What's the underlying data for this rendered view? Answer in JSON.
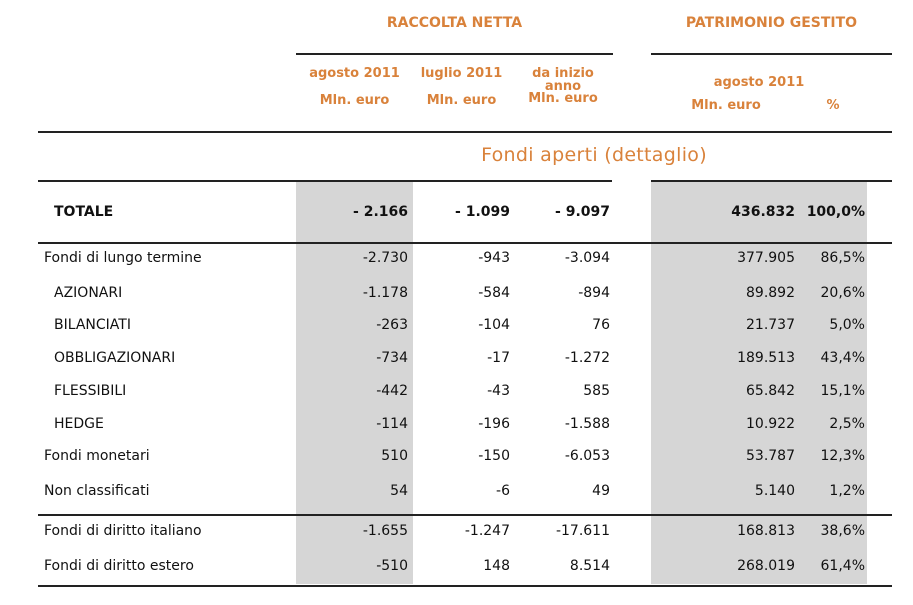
{
  "header": {
    "group_raccolta": "RACCOLTA NETTA",
    "group_patrimonio": "PATRIMONIO GESTITO",
    "columns": {
      "col1_period": "agosto 2011",
      "col1_unit": "Mln. euro",
      "col2_period": "luglio 2011",
      "col2_unit": "Mln. euro",
      "col3_period_line1": "da inizio",
      "col3_period_line2": "anno",
      "col3_unit": "Mln. euro",
      "col4_period": "agosto 2011",
      "col4_unit": "Mln. euro",
      "col5_unit": "%"
    }
  },
  "section_title": "Fondi aperti (dettaglio)",
  "totale": {
    "label": "TOTALE",
    "values": [
      "- 2.166",
      "- 1.099",
      "- 9.097",
      "436.832",
      "100,0%"
    ]
  },
  "rows": [
    {
      "label": "Fondi di lungo termine",
      "values": [
        "-2.730",
        "-943",
        "-3.094",
        "377.905",
        "86,5%"
      ]
    },
    {
      "label": "AZIONARI",
      "values": [
        "-1.178",
        "-584",
        "-894",
        "89.892",
        "20,6%"
      ]
    },
    {
      "label": "BILANCIATI",
      "values": [
        "-263",
        "-104",
        "76",
        "21.737",
        "5,0%"
      ]
    },
    {
      "label": "OBBLIGAZIONARI",
      "values": [
        "-734",
        "-17",
        "-1.272",
        "189.513",
        "43,4%"
      ]
    },
    {
      "label": "FLESSIBILI",
      "values": [
        "-442",
        "-43",
        "585",
        "65.842",
        "15,1%"
      ]
    },
    {
      "label": "HEDGE",
      "values": [
        "-114",
        "-196",
        "-1.588",
        "10.922",
        "2,5%"
      ]
    },
    {
      "label": "Fondi monetari",
      "values": [
        "510",
        "-150",
        "-6.053",
        "53.787",
        "12,3%"
      ]
    },
    {
      "label": "Non classificati",
      "values": [
        "54",
        "-6",
        "49",
        "5.140",
        "1,2%"
      ]
    },
    {
      "label": "Fondi di diritto italiano",
      "values": [
        "-1.655",
        "-1.247",
        "-17.611",
        "168.813",
        "38,6%"
      ]
    },
    {
      "label": "Fondi di diritto estero",
      "values": [
        "-510",
        "148",
        "8.514",
        "268.019",
        "61,4%"
      ]
    }
  ]
}
